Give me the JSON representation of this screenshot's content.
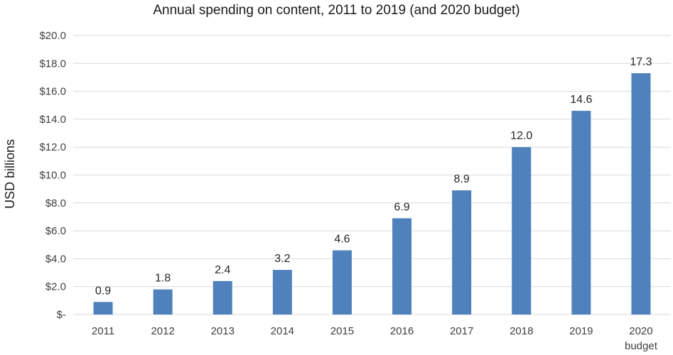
{
  "chart_data": {
    "type": "bar",
    "title": "Annual spending on content, 2011 to 2019 (and 2020 budget)",
    "ylabel": "USD billions",
    "xlabel": "",
    "categories": [
      "2011",
      "2012",
      "2013",
      "2014",
      "2015",
      "2016",
      "2017",
      "2018",
      "2019",
      "2020"
    ],
    "category_sublabels": [
      "",
      "",
      "",
      "",
      "",
      "",
      "",
      "",
      "",
      "budget"
    ],
    "values": [
      0.9,
      1.8,
      2.4,
      3.2,
      4.6,
      6.9,
      8.9,
      12.0,
      14.6,
      17.3
    ],
    "data_labels": [
      "0.9",
      "1.8",
      "2.4",
      "3.2",
      "4.6",
      "6.9",
      "8.9",
      "12.0",
      "14.6",
      "17.3"
    ],
    "ylim": [
      0,
      20
    ],
    "yticks": [
      0,
      2,
      4,
      6,
      8,
      10,
      12,
      14,
      16,
      18,
      20
    ],
    "ytick_labels": [
      "$-",
      "$2.0",
      "$4.0",
      "$6.0",
      "$8.0",
      "$10.0",
      "$12.0",
      "$14.0",
      "$16.0",
      "$18.0",
      "$20.0"
    ],
    "grid": true,
    "legend": "none",
    "bar_color": "#4f81bd",
    "grid_color": "#d9d9d9"
  }
}
